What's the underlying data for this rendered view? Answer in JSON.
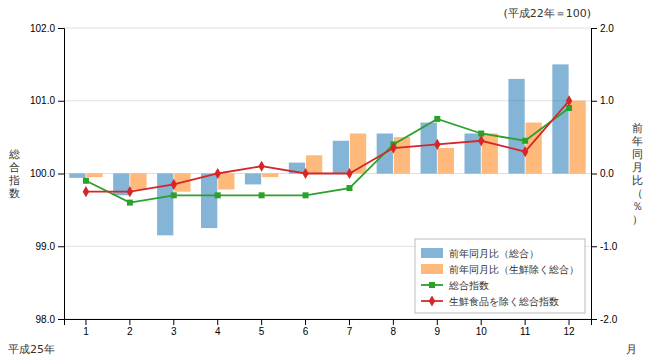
{
  "chart_data": {
    "type": "bar",
    "title": "(平成22年＝100)",
    "ylabel": "総\n合\n指\n数",
    "y2label": "前\n年\n同\n月\n比\n（\n％\n）",
    "xlabel": "月",
    "annotations": [
      {
        "text": "平成25年"
      }
    ],
    "categories": [
      "1",
      "2",
      "3",
      "4",
      "5",
      "6",
      "7",
      "8",
      "9",
      "10",
      "11",
      "12"
    ],
    "series": [
      {
        "name": "前年同月比（総合）",
        "type": "bar",
        "axis": "y2",
        "values": [
          -0.06,
          -0.3,
          -0.85,
          -0.75,
          -0.15,
          0.15,
          0.45,
          0.55,
          0.7,
          0.55,
          1.3,
          1.5
        ]
      },
      {
        "name": "前年同月比（生鮮除く総合）",
        "type": "bar",
        "axis": "y2",
        "values": [
          -0.05,
          -0.22,
          -0.25,
          -0.22,
          -0.05,
          0.25,
          0.55,
          0.5,
          0.35,
          0.55,
          0.7,
          1.0
        ]
      },
      {
        "name": "総合指数",
        "type": "line",
        "marker": "square",
        "values": [
          99.9,
          99.6,
          99.7,
          99.7,
          99.7,
          99.7,
          99.8,
          100.4,
          100.75,
          100.55,
          100.45,
          100.9
        ]
      },
      {
        "name": "生鮮食品を除く総合指数",
        "type": "line",
        "marker": "diamond",
        "values": [
          99.75,
          99.75,
          99.85,
          100.0,
          100.1,
          100.0,
          100.0,
          100.35,
          100.4,
          100.45,
          100.3,
          101.0
        ]
      }
    ],
    "ylim": [
      98.0,
      102.0
    ],
    "yticks": [
      {
        "value": 98.0,
        "label": "98.0"
      },
      {
        "value": 99.0,
        "label": "99.0"
      },
      {
        "value": 100.0,
        "label": "100.0"
      },
      {
        "value": 101.0,
        "label": "101.0"
      },
      {
        "value": 102.0,
        "label": "102.0"
      }
    ],
    "y2lim": [
      -2.0,
      2.0
    ],
    "y2ticks": [
      {
        "value": -2.0,
        "label": "-2.0"
      },
      {
        "value": -1.0,
        "label": "-1.0"
      },
      {
        "value": 0.0,
        "label": "0.0"
      },
      {
        "value": 1.0,
        "label": "1.0"
      },
      {
        "value": 2.0,
        "label": "2.0"
      }
    ],
    "grid": true,
    "legend": "lower right"
  }
}
